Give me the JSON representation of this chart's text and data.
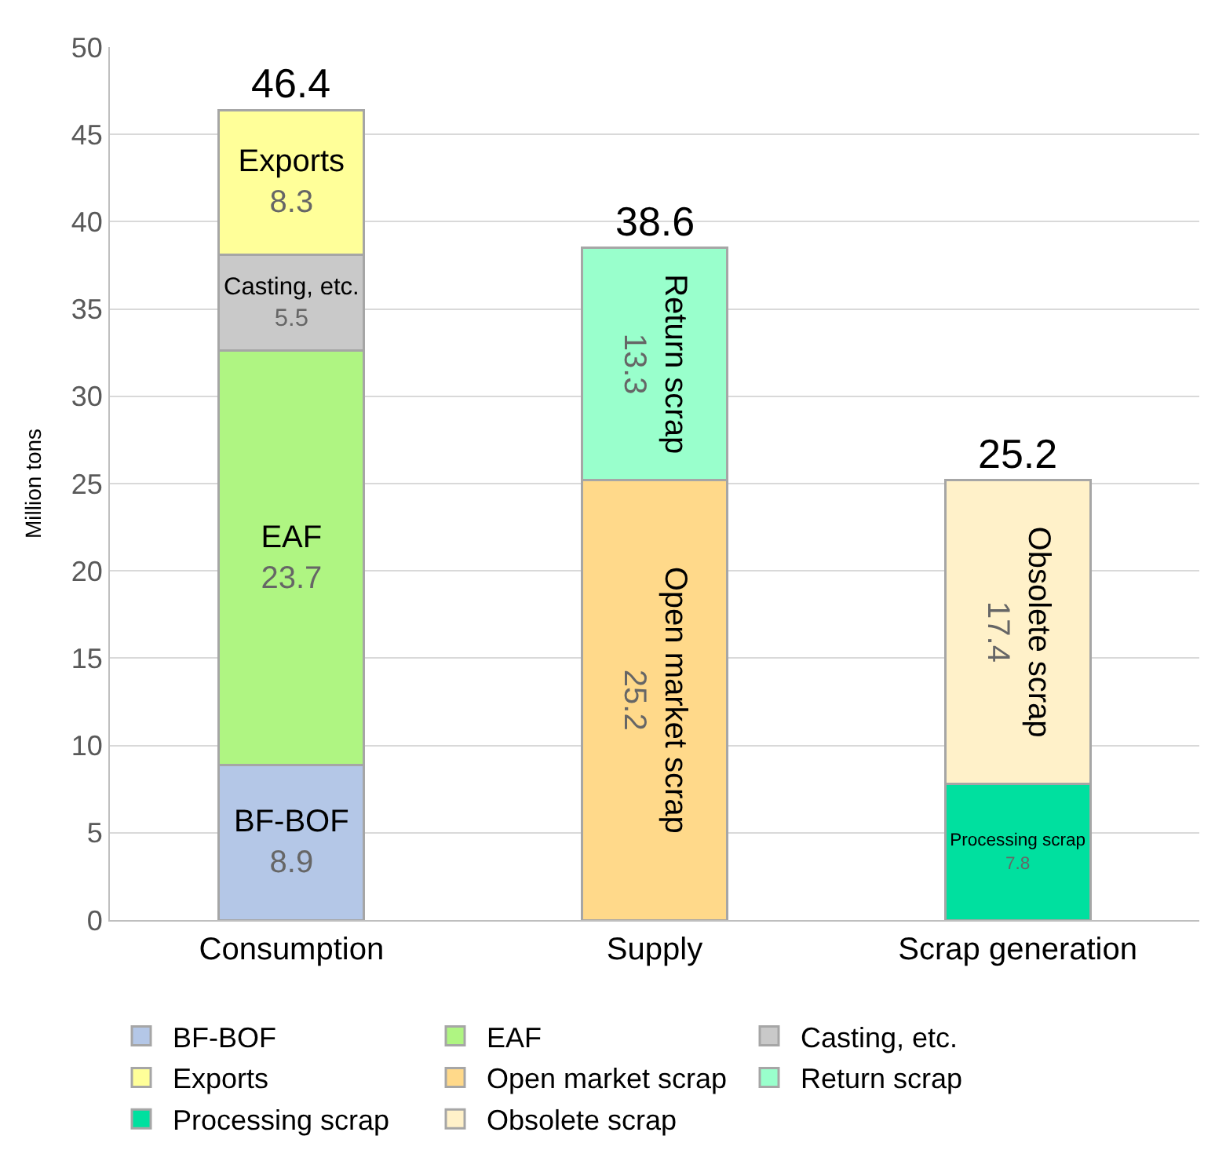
{
  "chart_data": {
    "type": "bar",
    "stacked": true,
    "ylabel": "Million tons",
    "categories": [
      "Consumption",
      "Supply",
      "Scrap generation"
    ],
    "series": [
      {
        "name": "BF-BOF",
        "color": "#b4c7e7",
        "values": [
          8.9,
          null,
          null
        ]
      },
      {
        "name": "EAF",
        "color": "#aff582",
        "values": [
          23.7,
          null,
          null
        ]
      },
      {
        "name": "Casting, etc.",
        "color": "#c9c9c9",
        "values": [
          5.5,
          null,
          null
        ]
      },
      {
        "name": "Exports",
        "color": "#ffff99",
        "values": [
          8.3,
          null,
          null
        ]
      },
      {
        "name": "Open market scrap",
        "color": "#ffd98a",
        "values": [
          null,
          25.2,
          null
        ]
      },
      {
        "name": "Return scrap",
        "color": "#99ffcc",
        "values": [
          null,
          13.3,
          null
        ]
      },
      {
        "name": "Processing scrap",
        "color": "#00e09f",
        "values": [
          null,
          null,
          7.8
        ]
      },
      {
        "name": "Obsolete scrap",
        "color": "#fff1c9",
        "values": [
          null,
          null,
          17.4
        ]
      }
    ],
    "totals": [
      "46.4",
      "38.6",
      "25.2"
    ],
    "data_labels": true,
    "ylim": [
      0,
      50
    ],
    "yticks": [
      0,
      5,
      10,
      15,
      20,
      25,
      30,
      35,
      40,
      45,
      50
    ],
    "grid": "y",
    "legend": "bottom"
  }
}
